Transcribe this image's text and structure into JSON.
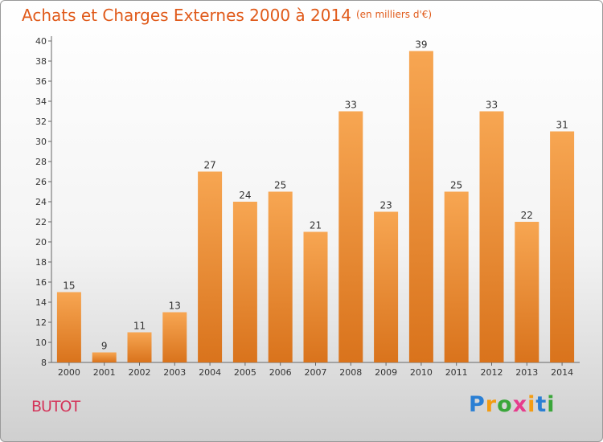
{
  "title": "Achats et Charges Externes 2000 à 2014",
  "unit": "(en milliers d'€)",
  "commune": "BUTOT",
  "logo": {
    "letters": [
      "P",
      "r",
      "o",
      "x",
      "i",
      "t",
      "i"
    ],
    "colors": [
      "#2a7fd4",
      "#f39c12",
      "#3aa63a",
      "#e63c8c",
      "#f39c12",
      "#2a7fd4",
      "#3aa63a"
    ]
  },
  "chart_data": {
    "type": "bar",
    "categories": [
      "2000",
      "2001",
      "2002",
      "2003",
      "2004",
      "2005",
      "2006",
      "2007",
      "2008",
      "2009",
      "2010",
      "2011",
      "2012",
      "2013",
      "2014"
    ],
    "values": [
      15,
      9,
      11,
      13,
      27,
      24,
      25,
      21,
      33,
      23,
      39,
      25,
      33,
      22,
      31
    ],
    "ylim": [
      8,
      40
    ],
    "yticks": [
      8,
      10,
      12,
      14,
      16,
      18,
      20,
      22,
      24,
      26,
      28,
      30,
      32,
      34,
      36,
      38,
      40
    ],
    "bar_color_top": "#f7a652",
    "bar_color_bottom": "#d9731c",
    "grid": false
  }
}
